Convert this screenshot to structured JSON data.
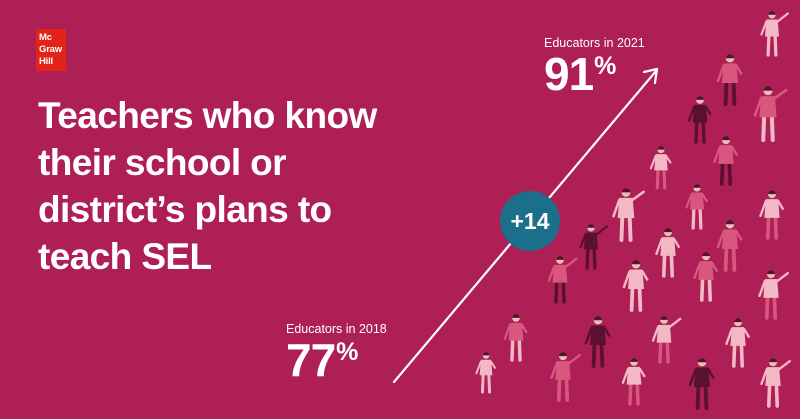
{
  "logo": {
    "line1": "Mc",
    "line2": "Graw",
    "line3": "Hill",
    "color": "#e2231a"
  },
  "headline": {
    "line1": "Teachers who know",
    "line2": "their school or",
    "line3": "district’s plans to",
    "line4": "teach SEL"
  },
  "stat_2018": {
    "label": "Educators in 2018",
    "value": "77",
    "unit": "%"
  },
  "stat_2021": {
    "label": "Educators in 2021",
    "value": "91",
    "unit": "%"
  },
  "change_badge": {
    "text": "+14",
    "color": "#1b6f8a"
  },
  "colors": {
    "background": "#ad1f55",
    "figure_light": "#f2b8c6",
    "figure_mid": "#d9577f",
    "figure_dark": "#5a1030"
  }
}
